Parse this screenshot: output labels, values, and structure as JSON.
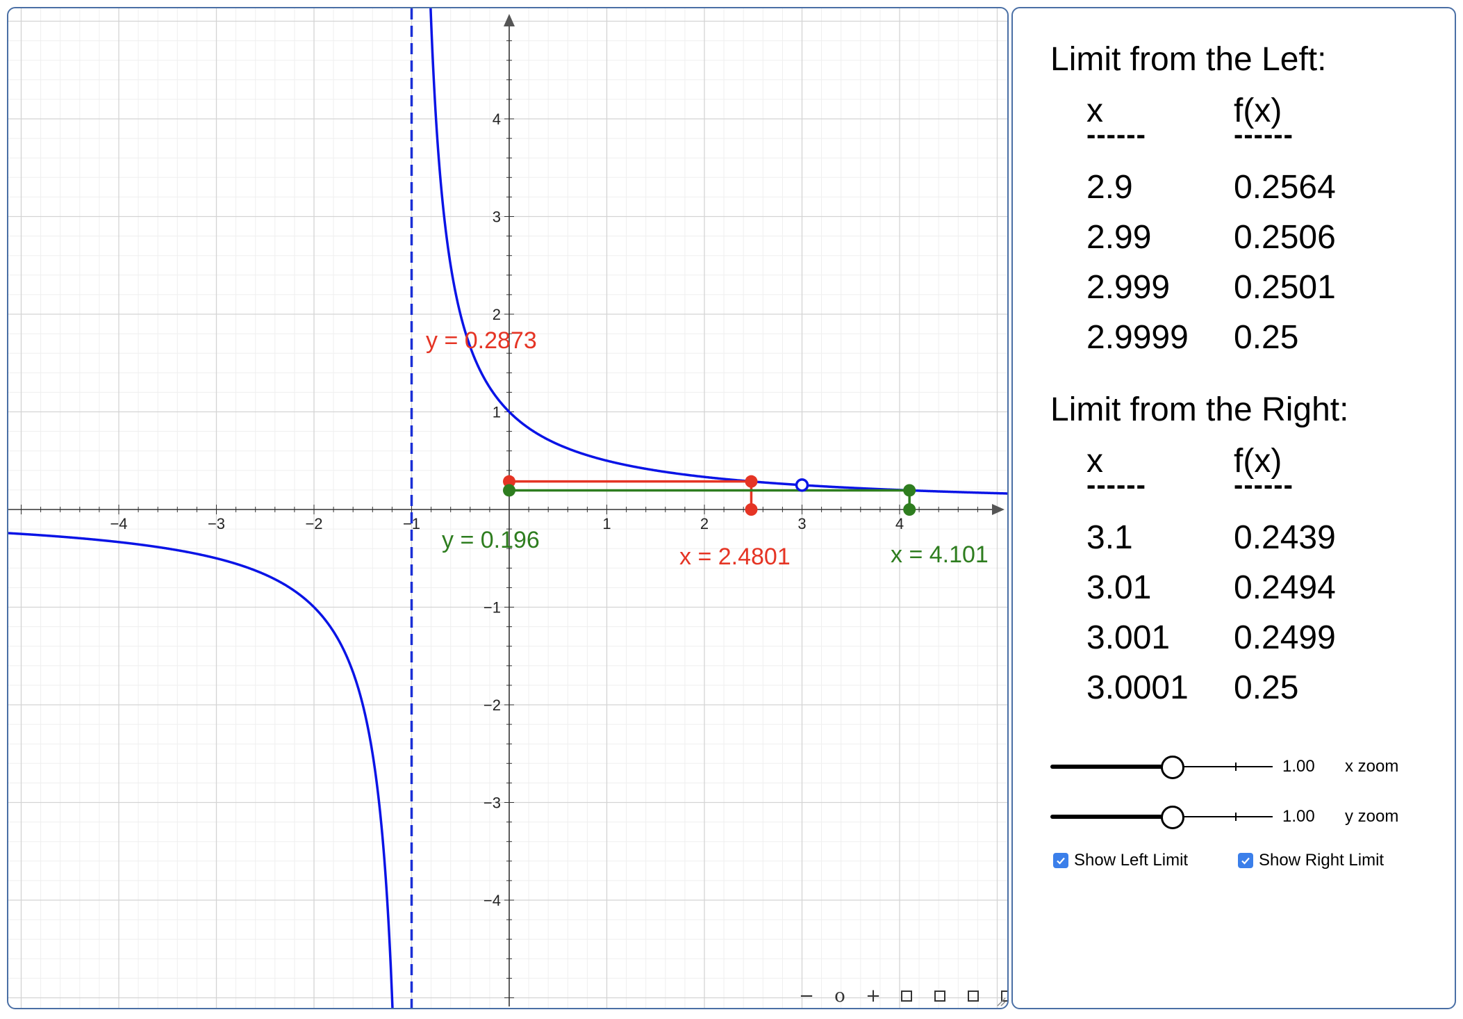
{
  "colors": {
    "curve": "#0a14e6",
    "asymptote": "#1a2fd6",
    "left_limit": "#e53424",
    "right_limit": "#2e7d1f",
    "grid": "#d4d4d4",
    "axis": "#333333"
  },
  "graph": {
    "y_axis_labels": [
      "4",
      "3",
      "2",
      "1",
      "−1",
      "−2",
      "−3",
      "−4"
    ],
    "x_axis_labels": [
      "−4",
      "−3",
      "−2",
      "−1",
      "1",
      "2",
      "3",
      "4"
    ],
    "left_label_y": "y = 0.2873",
    "left_label_x": "x = 2.4801",
    "right_label_y": "y = 0.196",
    "right_label_x": "x = 4.101",
    "left_point": {
      "x": 2.4801,
      "y": 0.2873
    },
    "right_point": {
      "x": 4.101,
      "y": 0.196
    },
    "hole": {
      "x": 3,
      "y": 0.25
    },
    "asymptote_x": -1
  },
  "chart_data": {
    "type": "line",
    "function": "f(x) = (x - 3) / (x^2 - 2x - 3)",
    "xlim": [
      -5.1,
      5.1
    ],
    "ylim": [
      -5.1,
      5.1
    ],
    "grid": true
  },
  "panel": {
    "left_title": "Limit from the Left:",
    "right_title": "Limit from the Right:",
    "col_x": "x",
    "col_fx": "f(x)",
    "dashes": "------",
    "left_rows": [
      {
        "x": "2.9",
        "fx": "0.2564"
      },
      {
        "x": "2.99",
        "fx": "0.2506"
      },
      {
        "x": "2.999",
        "fx": "0.2501"
      },
      {
        "x": "2.9999",
        "fx": "0.25"
      }
    ],
    "right_rows": [
      {
        "x": "3.1",
        "fx": "0.2439"
      },
      {
        "x": "3.01",
        "fx": "0.2494"
      },
      {
        "x": "3.001",
        "fx": "0.2499"
      },
      {
        "x": "3.0001",
        "fx": "0.25"
      }
    ],
    "x_zoom_value": "1.00",
    "x_zoom_label": "x zoom",
    "y_zoom_value": "1.00",
    "y_zoom_label": "y zoom",
    "x_zoom_level": 0.55,
    "y_zoom_level": 0.55,
    "show_left_label": "Show Left Limit",
    "show_right_label": "Show Right Limit",
    "show_left_checked": true,
    "show_right_checked": true
  },
  "toolbar": {
    "zoom_out": "−",
    "zoom_reset": "o",
    "zoom_in": "+"
  }
}
